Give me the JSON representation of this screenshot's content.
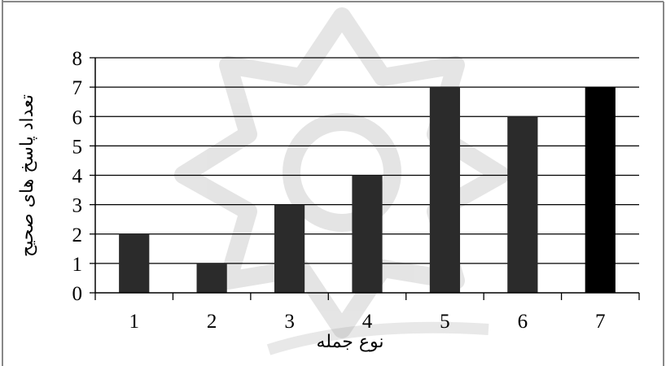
{
  "chart_data": {
    "type": "bar",
    "categories": [
      "1",
      "2",
      "3",
      "4",
      "5",
      "6",
      "7"
    ],
    "values": [
      2,
      1,
      3,
      4,
      7,
      6,
      7
    ],
    "bar_colors": [
      "#2b2b2b",
      "#2b2b2b",
      "#2b2b2b",
      "#2b2b2b",
      "#2b2b2b",
      "#2b2b2b",
      "#000000"
    ],
    "title": "",
    "xlabel": "نوع جمله",
    "ylabel": "تعداد پاسخ های صحیح",
    "ylim": [
      0,
      8
    ],
    "yticks": [
      "0",
      "1",
      "2",
      "3",
      "4",
      "5",
      "6",
      "7",
      "8"
    ],
    "grid": true,
    "legend": "none",
    "watermark": true
  }
}
